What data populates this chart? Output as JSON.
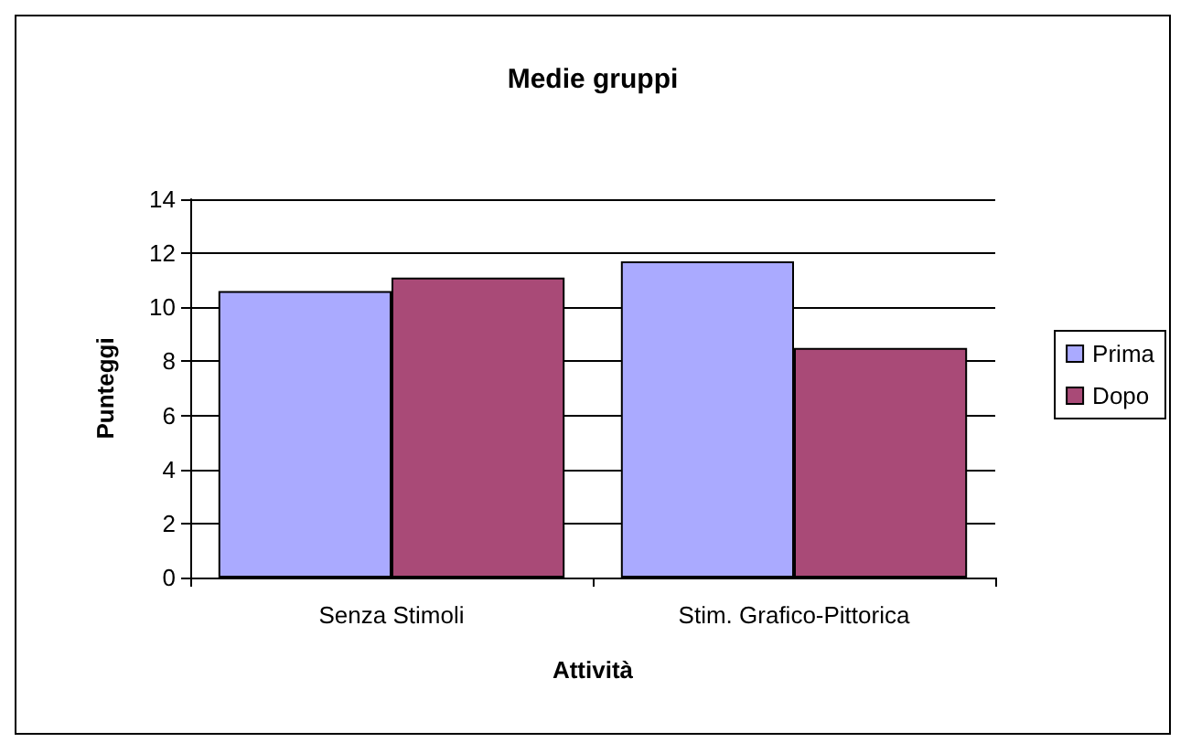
{
  "chart_data": {
    "type": "bar",
    "title": "Medie gruppi",
    "xlabel": "Attività",
    "ylabel": "Punteggi",
    "categories": [
      "Senza Stimoli",
      "Stim. Grafico-Pittorica"
    ],
    "series": [
      {
        "name": "Prima",
        "color": "#aaaaff",
        "values": [
          10.6,
          11.7
        ]
      },
      {
        "name": "Dopo",
        "color": "#a94a77",
        "values": [
          11.1,
          8.5
        ]
      }
    ],
    "ylim": [
      0,
      14
    ],
    "yticks": [
      0,
      2,
      4,
      6,
      8,
      10,
      12,
      14
    ],
    "grid": "y",
    "legend": "right"
  }
}
